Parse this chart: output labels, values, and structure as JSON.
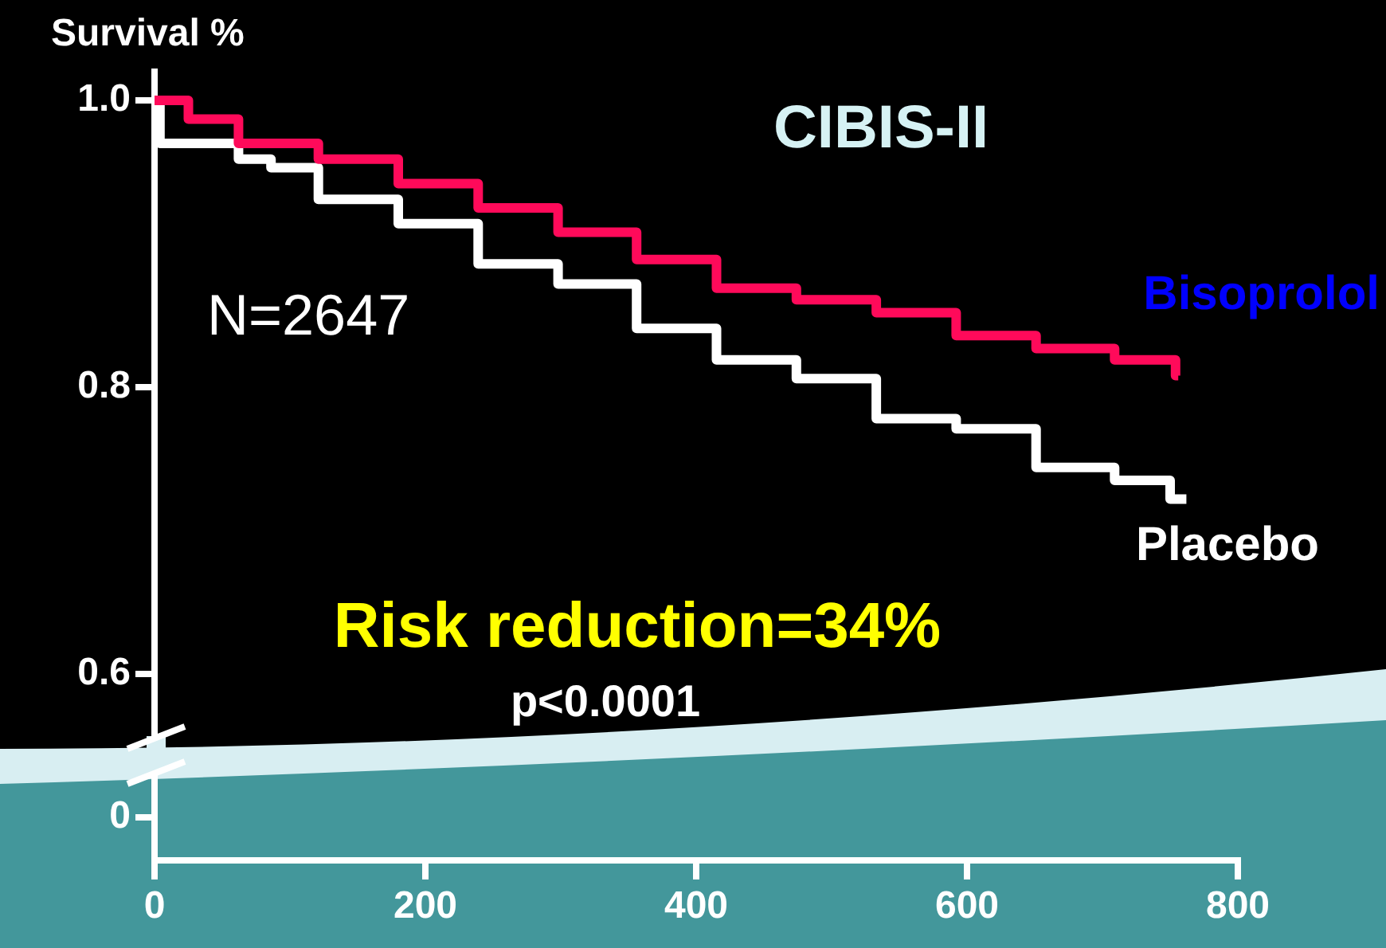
{
  "chart_data": {
    "type": "step",
    "title": "CIBIS-II",
    "ylabel": "Survival %",
    "annotations": [
      "N=2647",
      "Risk reduction=34%",
      "p<0.0001"
    ],
    "xlim": [
      0,
      800
    ],
    "xticks": [
      0,
      200,
      400,
      600,
      800
    ],
    "ylim": [
      0.47,
      1.02
    ],
    "yticks": [
      {
        "value": 0.5,
        "label": "0"
      },
      0.6,
      0.8,
      {
        "value": 1,
        "label": "1.0"
      }
    ],
    "grid": false,
    "legend": false,
    "marker": "none",
    "series": [
      {
        "name": "Bisoprolol",
        "color": "#ff0a5a",
        "x": [
          0,
          4,
          25,
          62,
          121,
          180,
          239,
          298,
          356,
          415,
          474,
          533,
          592,
          651,
          709,
          754,
          756
        ],
        "values": [
          1,
          1,
          1,
          0.987,
          0.97,
          0.959,
          0.942,
          0.925,
          0.908,
          0.889,
          0.869,
          0.861,
          0.852,
          0.836,
          0.827,
          0.819,
          0.808
        ]
      },
      {
        "name": "Placebo",
        "color": "#ffffff",
        "x": [
          0,
          4,
          62,
          86,
          121,
          180,
          239,
          298,
          356,
          415,
          474,
          509,
          533,
          592,
          651,
          709,
          750,
          762
        ],
        "values": [
          1,
          1,
          0.97,
          0.959,
          0.953,
          0.931,
          0.914,
          0.886,
          0.872,
          0.841,
          0.819,
          0.806,
          0.806,
          0.778,
          0.771,
          0.744,
          0.735,
          0.722
        ]
      }
    ]
  }
}
